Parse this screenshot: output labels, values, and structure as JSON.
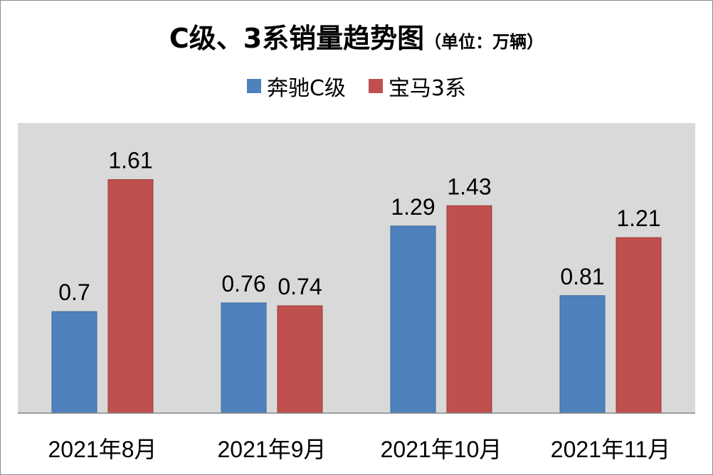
{
  "chart_data": {
    "type": "bar",
    "title": "C级、3系销量趋势图",
    "unit_label": "（单位：万辆）",
    "categories": [
      "2021年8月",
      "2021年9月",
      "2021年10月",
      "2021年11月"
    ],
    "series": [
      {
        "name": "奔驰C级",
        "color": "#4f81bd",
        "values": [
          0.7,
          0.76,
          1.29,
          0.81
        ]
      },
      {
        "name": "宝马3系",
        "color": "#c0504d",
        "values": [
          1.61,
          0.74,
          1.43,
          1.21
        ]
      }
    ],
    "data_labels": [
      [
        "0.7",
        "0.76",
        "1.29",
        "0.81"
      ],
      [
        "1.61",
        "0.74",
        "1.43",
        "1.21"
      ]
    ],
    "ylim": [
      0,
      2
    ],
    "grid": false,
    "legend_position": "top",
    "plot_background": "#d9d9d9"
  }
}
